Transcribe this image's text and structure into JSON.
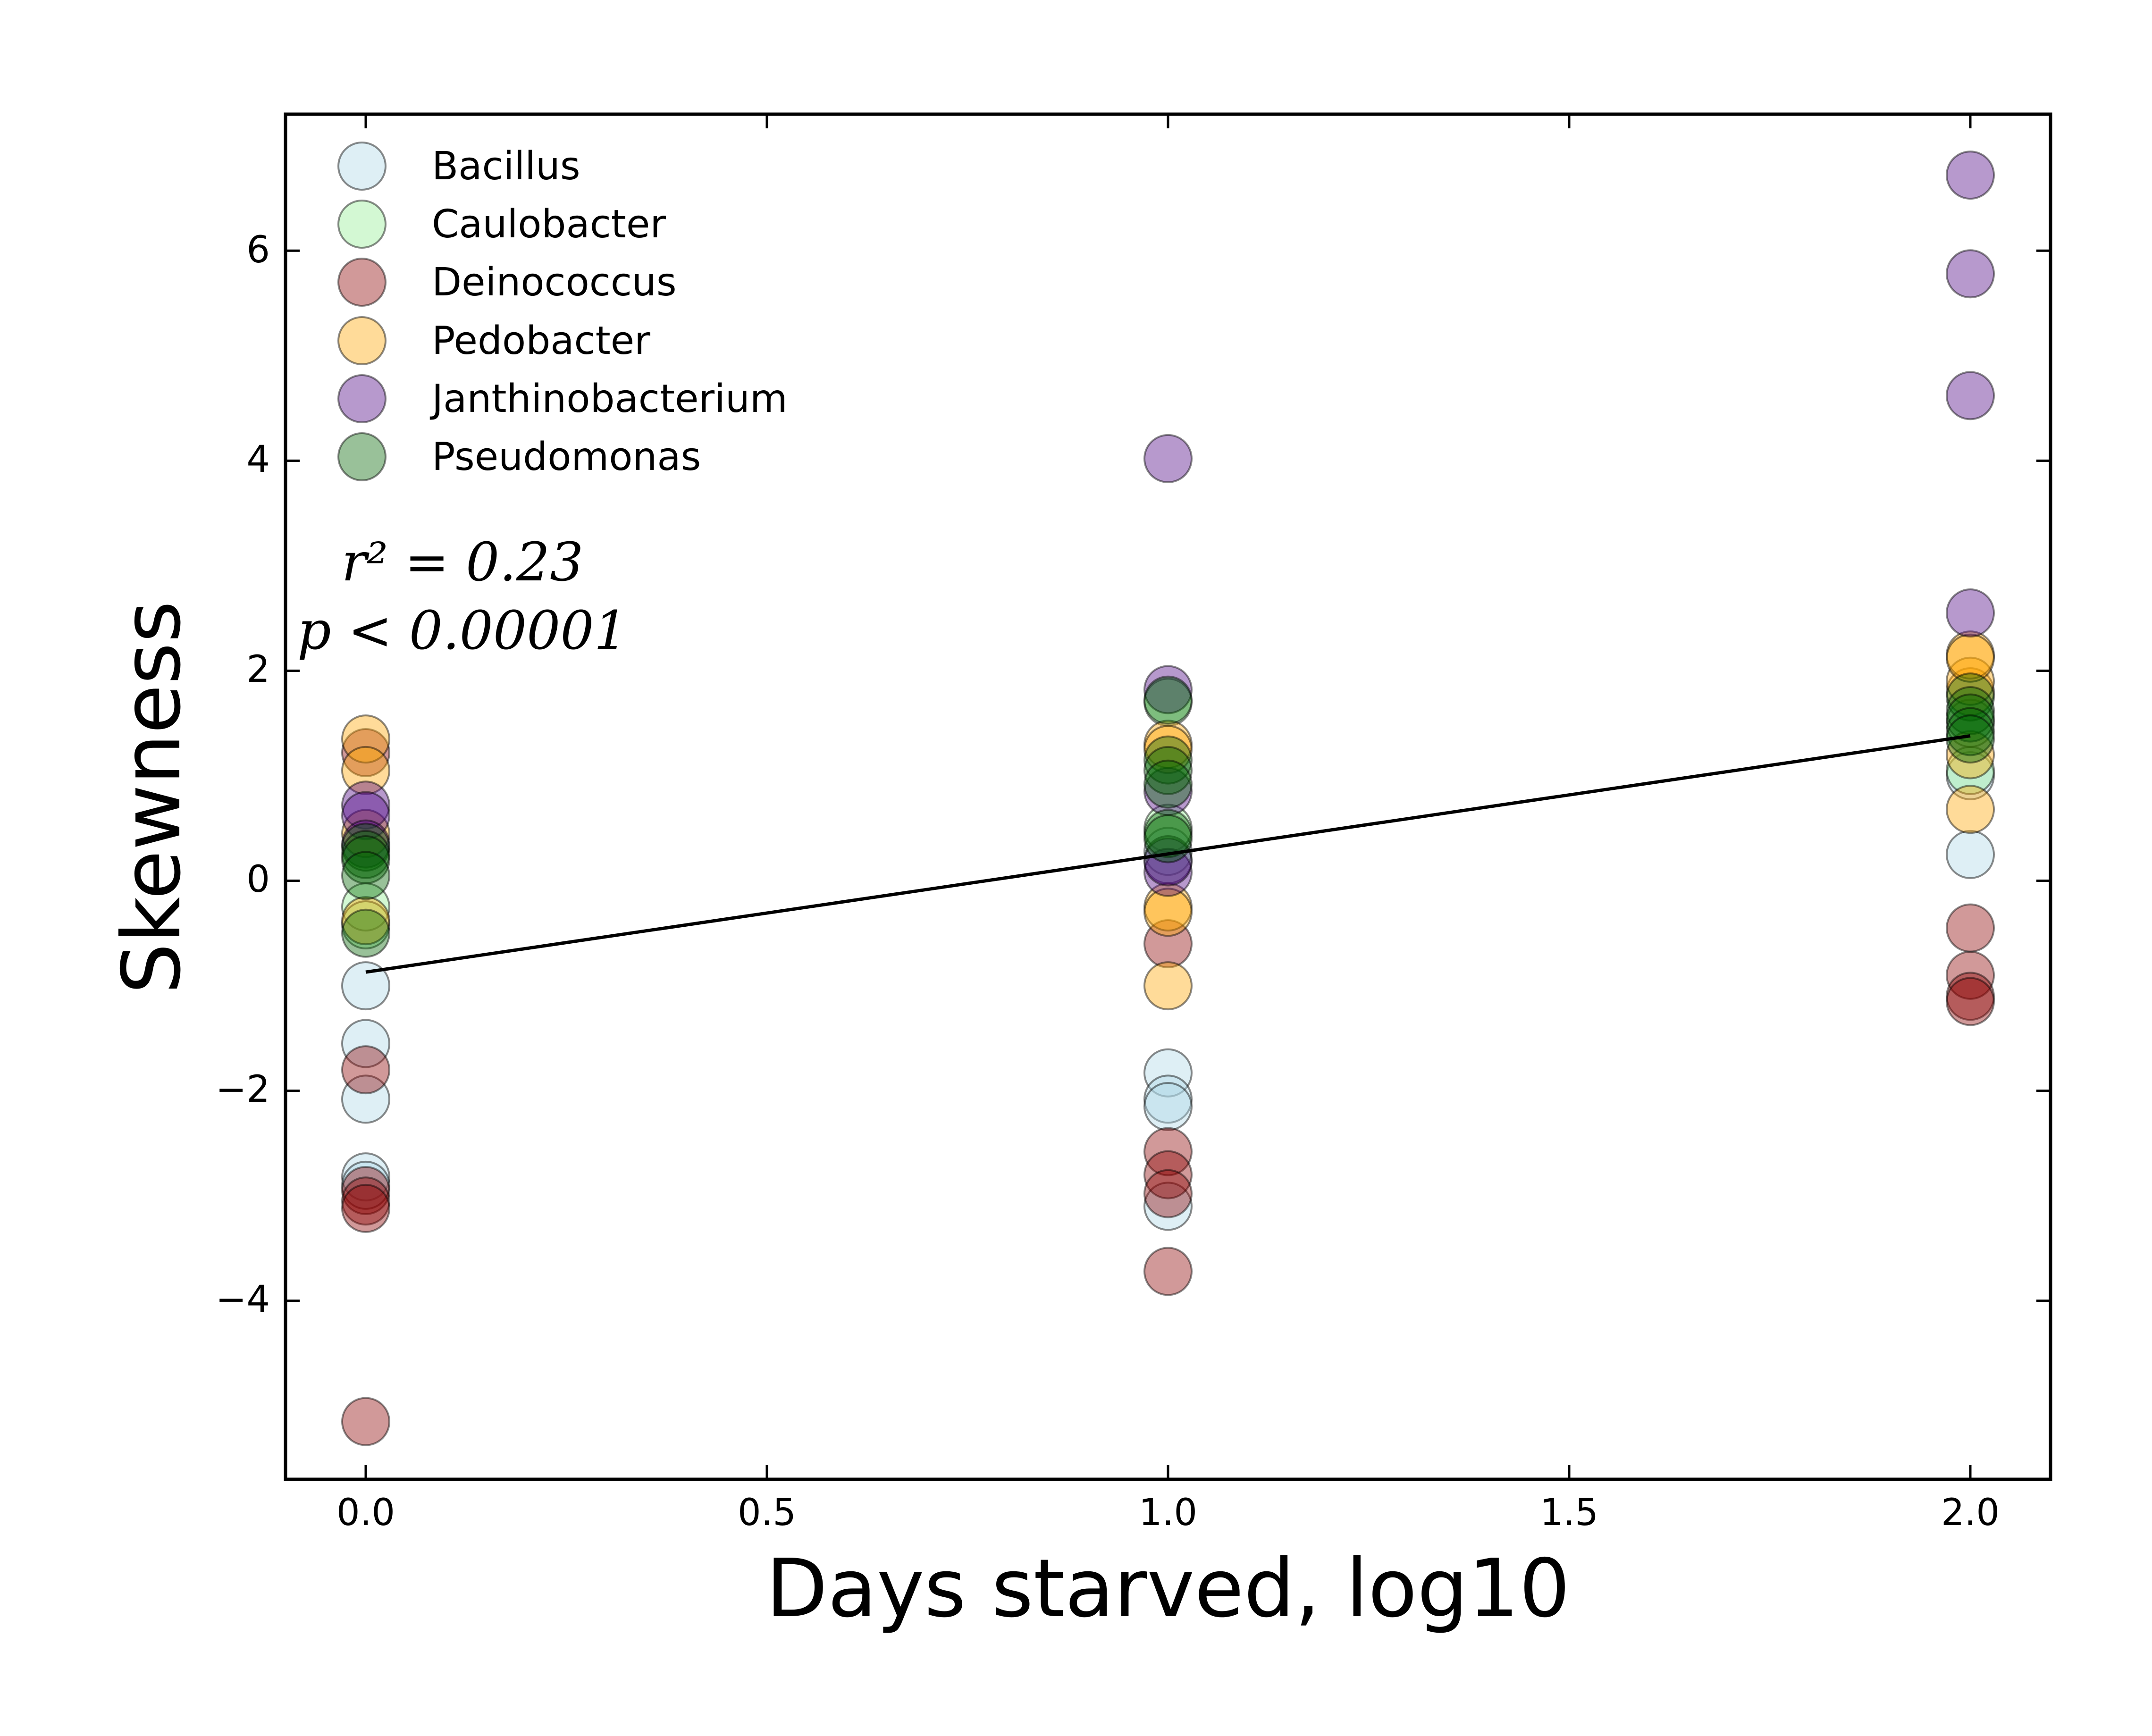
{
  "chart_data": {
    "type": "scatter",
    "xlabel": "Days starved, log10",
    "ylabel": "Skewness",
    "xlim": [
      -0.1,
      2.1
    ],
    "ylim": [
      -5.7,
      7.3
    ],
    "xticks": [
      0.0,
      0.5,
      1.0,
      1.5,
      2.0
    ],
    "xtick_labels": [
      "0.0",
      "0.5",
      "1.0",
      "1.5",
      "2.0"
    ],
    "yticks": [
      6,
      4,
      2,
      0,
      -2,
      -4
    ],
    "ytick_labels": [
      "6",
      "4",
      "2",
      "0",
      "−2",
      "−4"
    ],
    "legend_position": "top-left",
    "annotation": {
      "r2_text": "r² = 0.23",
      "p_text": "p < 0.00001"
    },
    "fit_line": {
      "x": [
        0.0,
        2.0
      ],
      "y": [
        -0.87,
        1.38
      ]
    },
    "series": [
      {
        "name": "Bacillus",
        "color": "#add8e6",
        "points": [
          [
            0,
            -1.0
          ],
          [
            0,
            -1.55
          ],
          [
            0,
            -2.08
          ],
          [
            0,
            -2.82
          ],
          [
            0,
            -2.9
          ],
          [
            1,
            -1.83
          ],
          [
            1,
            -2.08
          ],
          [
            1,
            -2.15
          ],
          [
            1,
            -3.1
          ],
          [
            1,
            0.28
          ],
          [
            2,
            0.25
          ],
          [
            2,
            1.0
          ]
        ]
      },
      {
        "name": "Caulobacter",
        "color": "#90ee90",
        "points": [
          [
            0,
            -0.25
          ],
          [
            0,
            -0.42
          ],
          [
            1,
            0.5
          ],
          [
            1,
            1.7
          ],
          [
            1,
            0.2
          ],
          [
            2,
            1.05
          ],
          [
            2,
            1.5
          ]
        ]
      },
      {
        "name": "Deinococcus",
        "color": "#8b0000",
        "points": [
          [
            0,
            -1.8
          ],
          [
            0,
            -2.95
          ],
          [
            0,
            -3.05
          ],
          [
            0,
            -3.12
          ],
          [
            0,
            -5.15
          ],
          [
            0,
            1.22
          ],
          [
            1,
            -0.6
          ],
          [
            1,
            -2.58
          ],
          [
            1,
            -2.8
          ],
          [
            1,
            -2.98
          ],
          [
            1,
            -3.72
          ],
          [
            2,
            -0.45
          ],
          [
            2,
            -0.9
          ],
          [
            2,
            -1.1
          ],
          [
            2,
            -1.15
          ]
        ]
      },
      {
        "name": "Pedobacter",
        "color": "#ffa500",
        "points": [
          [
            0,
            1.35
          ],
          [
            0,
            1.05
          ],
          [
            0,
            -0.38
          ],
          [
            0,
            0.45
          ],
          [
            1,
            -0.25
          ],
          [
            1,
            -0.3
          ],
          [
            1,
            -1.0
          ],
          [
            1,
            1.3
          ],
          [
            1,
            1.25
          ],
          [
            2,
            0.68
          ],
          [
            2,
            1.8
          ],
          [
            2,
            1.9
          ],
          [
            2,
            2.15
          ],
          [
            2,
            2.12
          ],
          [
            2,
            1.2
          ]
        ]
      },
      {
        "name": "Janthinobacterium",
        "color": "#4b0082",
        "points": [
          [
            0,
            0.72
          ],
          [
            0,
            0.62
          ],
          [
            0,
            0.35
          ],
          [
            1,
            4.02
          ],
          [
            1,
            1.82
          ],
          [
            1,
            0.08
          ],
          [
            1,
            0.18
          ],
          [
            1,
            0.85
          ],
          [
            2,
            6.72
          ],
          [
            2,
            5.78
          ],
          [
            2,
            4.62
          ],
          [
            2,
            2.55
          ]
        ]
      },
      {
        "name": "Pseudomonas",
        "color": "#006400",
        "points": [
          [
            0,
            0.32
          ],
          [
            0,
            0.25
          ],
          [
            0,
            0.2
          ],
          [
            0,
            0.05
          ],
          [
            0,
            -0.5
          ],
          [
            1,
            1.72
          ],
          [
            1,
            1.15
          ],
          [
            1,
            1.05
          ],
          [
            1,
            0.92
          ],
          [
            1,
            0.45
          ],
          [
            1,
            0.4
          ],
          [
            2,
            1.75
          ],
          [
            2,
            1.62
          ],
          [
            2,
            1.55
          ],
          [
            2,
            1.42
          ],
          [
            2,
            1.35
          ]
        ]
      }
    ]
  }
}
